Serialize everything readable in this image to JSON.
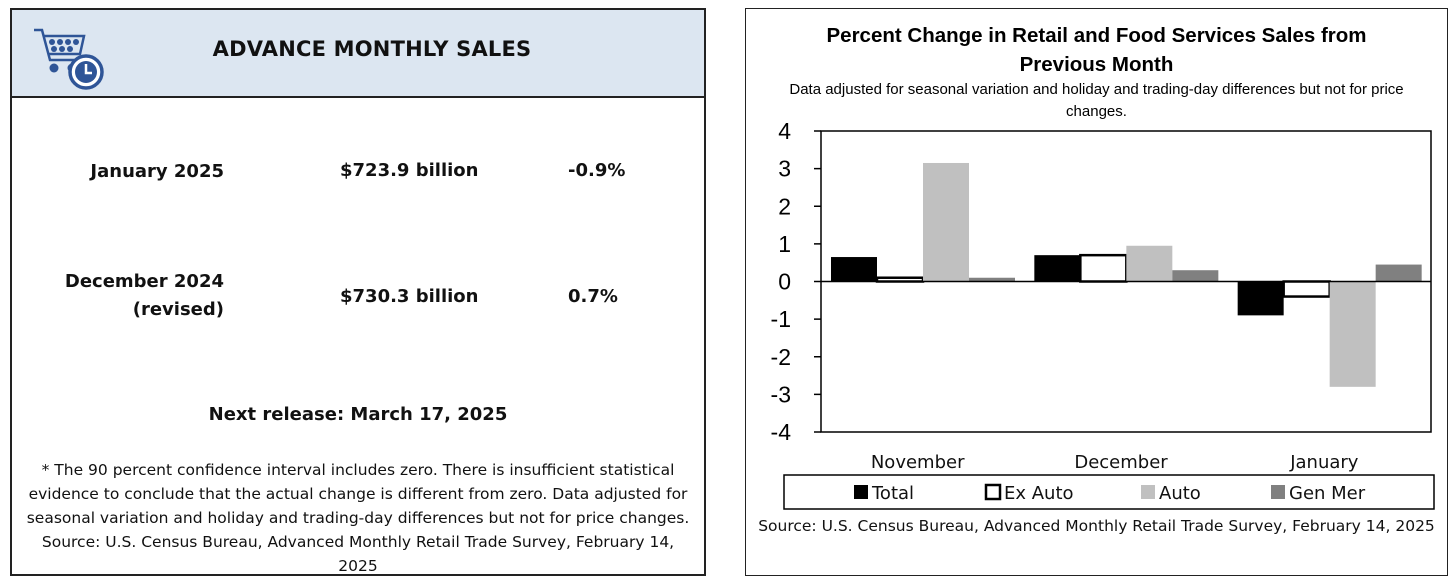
{
  "left": {
    "title": "ADVANCE MONTHLY SALES",
    "rows": [
      {
        "label": "January 2025",
        "sublabel": "",
        "value": "$723.9 billion",
        "change": "-0.9%"
      },
      {
        "label": "December 2024",
        "sublabel": "(revised)",
        "value": "$730.3 billion",
        "change": "0.7%"
      }
    ],
    "next_release": "Next release: March 17, 2025",
    "footnote": "* The 90 percent confidence interval includes zero. There is insufficient statistical evidence to conclude that the actual change is different from zero. Data adjusted for seasonal variation and holiday and trading-day differences but not for price changes. Source: U.S. Census Bureau, Advanced Monthly Retail Trade Survey, February 14, 2025",
    "icons": {
      "logo": "shopping-cart-clock-icon"
    },
    "colors": {
      "header_bg": "#dce6f1",
      "logo": "#2f5597"
    }
  },
  "chart": {
    "source": "Source: U.S. Census Bureau, Advanced Monthly Retail Trade Survey, February 14, 2025"
  },
  "chart_data": {
    "type": "bar",
    "title": "Percent Change in Retail and Food Services Sales from Previous Month",
    "subtitle": "Data adjusted for seasonal variation and holiday and trading-day differences but not for price changes.",
    "xlabel": "",
    "ylabel": "",
    "categories": [
      "November",
      "December",
      "January"
    ],
    "series": [
      {
        "name": "Total",
        "values": [
          0.65,
          0.7,
          -0.9
        ],
        "color": "#000000",
        "style": "solid"
      },
      {
        "name": "Ex Auto",
        "values": [
          0.1,
          0.7,
          -0.4
        ],
        "color": "#ffffff",
        "style": "outline"
      },
      {
        "name": "Auto",
        "values": [
          3.15,
          0.95,
          -2.8
        ],
        "color": "#c0c0c0",
        "style": "solid"
      },
      {
        "name": "Gen Mer",
        "values": [
          0.1,
          0.3,
          0.45
        ],
        "color": "#808080",
        "style": "solid"
      }
    ],
    "ylim": [
      -4,
      4
    ],
    "yticks": [
      "4",
      "3",
      "2",
      "1",
      "0",
      "-1",
      "-2",
      "-3",
      "-4"
    ],
    "grid": false,
    "legend_position": "bottom"
  }
}
